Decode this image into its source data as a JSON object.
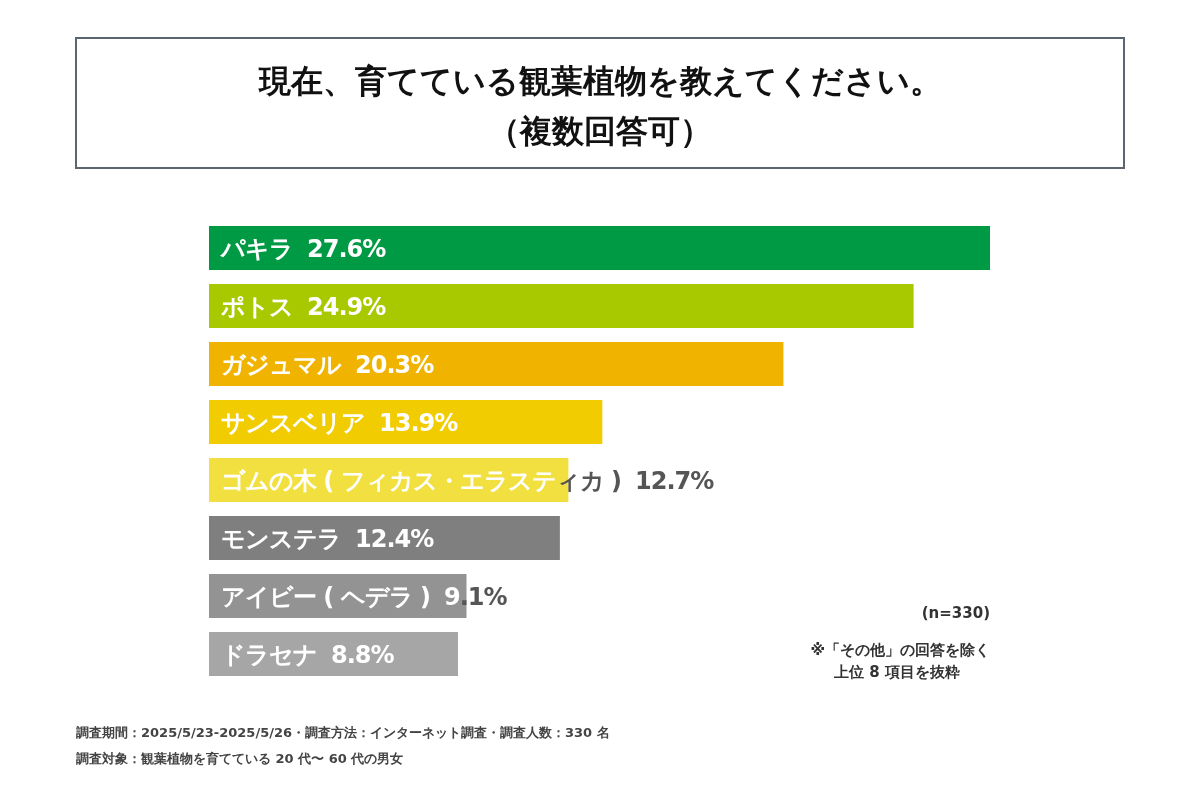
{
  "chart_data": {
    "type": "bar",
    "orientation": "horizontal",
    "title": "現在、育てている観葉植物を教えてください。",
    "subtitle": "（複数回答可）",
    "categories": [
      "パキラ",
      "ポトス",
      "ガジュマル",
      "サンスベリア",
      "ゴムの木 ( フィカス・エラスティカ )",
      "モンステラ",
      "アイビー ( ヘデラ )",
      "ドラセナ"
    ],
    "values": [
      27.6,
      24.9,
      20.3,
      13.9,
      12.7,
      12.4,
      9.1,
      8.8
    ],
    "value_labels": [
      "27.6%",
      "24.9%",
      "20.3%",
      "13.9%",
      "12.7%",
      "12.4%",
      "9.1%",
      "8.8%"
    ],
    "colors": [
      "#009a44",
      "#a8c800",
      "#f0b400",
      "#f0cc00",
      "#f2e040",
      "#7f7f7f",
      "#939393",
      "#a6a6a6"
    ],
    "annotations": [
      "(n=330)",
      "※「その他」の回答を除く上位 8 項目を抜粋",
      "調査期間：2025/5/23-2025/5/26・調査方法：インターネット調査・調査人数：330 名",
      "調査対象：観葉植物を育てている 20 代〜 60 代の男女"
    ]
  }
}
